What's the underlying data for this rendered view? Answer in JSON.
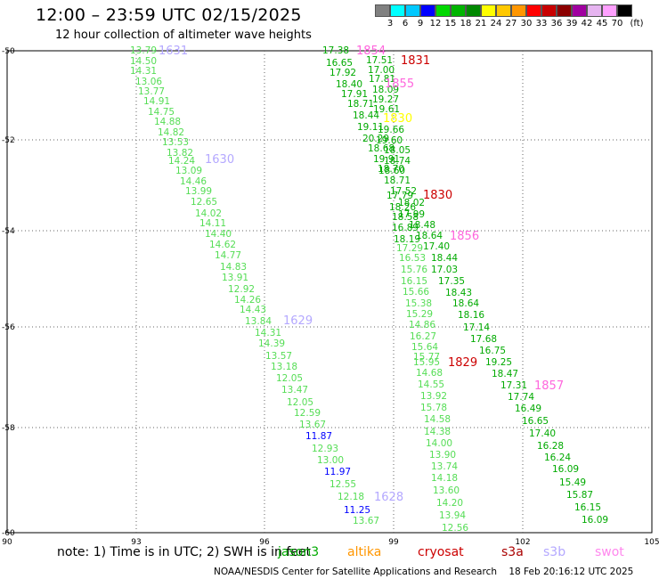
{
  "header": {
    "title": "12:00 – 23:59 UTC 02/15/2025",
    "subtitle": "12 hour collection of altimeter wave heights"
  },
  "color_scale": {
    "unit_label": "(ft)",
    "colors": [
      "#808080",
      "#00ffff",
      "#00c8ff",
      "#0000ff",
      "#00d800",
      "#00b400",
      "#008800",
      "#ffff00",
      "#ffc800",
      "#ff9600",
      "#ff0000",
      "#c80000",
      "#8c0000",
      "#a000a0",
      "#e6b4f0",
      "#ffa0ff",
      "#000000"
    ],
    "boundaries": [
      "3",
      "6",
      "9",
      "12",
      "15",
      "18",
      "21",
      "24",
      "27",
      "30",
      "33",
      "36",
      "39",
      "42",
      "45",
      "70"
    ]
  },
  "axes": {
    "lon_labels": [
      "90",
      "93",
      "96",
      "99",
      "102",
      "105"
    ],
    "lat_labels": [
      "-50",
      "-52",
      "-54",
      "-56",
      "-58",
      "-60"
    ]
  },
  "tracks": [
    {
      "label": "1631",
      "label_color": "#b4a8ff",
      "label_pos": [
        178,
        56
      ],
      "color": "#55dd55",
      "points": [
        [
          "13.79",
          146,
          56
        ],
        [
          "14.50",
          146,
          68
        ],
        [
          "14.31",
          146,
          79
        ],
        [
          "13.06",
          152,
          91
        ],
        [
          "13.77",
          155,
          102
        ],
        [
          "14.91",
          161,
          113
        ],
        [
          "14.75",
          166,
          125
        ],
        [
          "14.88",
          173,
          136
        ],
        [
          "14.82",
          177,
          148
        ],
        [
          "13.53",
          182,
          159
        ],
        [
          "13.82",
          187,
          171
        ],
        [
          "14.24",
          189,
          180
        ],
        [
          "13.09",
          197,
          191
        ],
        [
          "14.46",
          202,
          203
        ],
        [
          "13.99",
          208,
          214
        ],
        [
          "12.65",
          214,
          226
        ],
        [
          "14.02",
          219,
          239
        ],
        [
          "14.11",
          224,
          250
        ],
        [
          "14.40",
          230,
          262
        ],
        [
          "14.62",
          235,
          274
        ],
        [
          "14.77",
          241,
          286
        ],
        [
          "14.83",
          247,
          299
        ],
        [
          "13.91",
          249,
          311
        ],
        [
          "12.92",
          256,
          324
        ],
        [
          "14.26",
          263,
          336
        ],
        [
          "14.43",
          269,
          347
        ],
        [
          "13.84",
          275,
          360
        ]
      ]
    },
    {
      "label": "1630",
      "label_color": "#b4a8ff",
      "label_pos": [
        230,
        178
      ],
      "points": []
    },
    {
      "label": "1629",
      "label_color": "#b4a8ff",
      "label_pos": [
        318,
        359
      ],
      "points": []
    },
    {
      "label": "1629b",
      "label_color": "#55dd55",
      "color": "#55dd55",
      "points": [
        [
          "14.31",
          286,
          373
        ],
        [
          "14.39",
          290,
          385
        ],
        [
          "13.57",
          298,
          399
        ],
        [
          "13.18",
          304,
          411
        ],
        [
          "12.05",
          310,
          424
        ],
        [
          "13.47",
          316,
          437
        ],
        [
          "12.05",
          322,
          451
        ],
        [
          "12.59",
          330,
          463
        ],
        [
          "13.67",
          336,
          476
        ]
      ]
    },
    {
      "label": "1628",
      "label_color": "#b4a8ff",
      "label_pos": [
        420,
        557
      ],
      "color": "#55dd55",
      "points": [
        [
          "11.87",
          343,
          489,
          "#0000ff"
        ],
        [
          "12.93",
          350,
          503
        ],
        [
          "13.00",
          356,
          516
        ],
        [
          "11.97",
          364,
          529,
          "#0000ff"
        ],
        [
          "12.55",
          370,
          543
        ],
        [
          "12.18",
          379,
          557
        ],
        [
          "11.25",
          386,
          572,
          "#0000ff"
        ],
        [
          "13.67",
          396,
          584
        ]
      ]
    },
    {
      "label": "1854",
      "label_color": "#ff66dd",
      "label_pos": [
        400,
        56
      ],
      "color": "#00aa00",
      "points": [
        [
          "17.38",
          362,
          56
        ],
        [
          "16.65",
          366,
          70
        ],
        [
          "17.92",
          370,
          81
        ],
        [
          "18.40",
          377,
          94
        ],
        [
          "17.91",
          383,
          105
        ],
        [
          "18.71",
          390,
          116
        ],
        [
          "18.44",
          396,
          129
        ],
        [
          "19.11",
          401,
          142
        ],
        [
          "20.29",
          407,
          155
        ],
        [
          "18.68",
          413,
          166
        ],
        [
          "19.91",
          419,
          178
        ],
        [
          "18.70",
          424,
          189
        ]
      ]
    },
    {
      "label": "1831",
      "label_color": "#cc0000",
      "label_pos": [
        450,
        67
      ],
      "color": "#00aa00",
      "points": [
        [
          "17.51",
          411,
          67
        ],
        [
          "17.00",
          413,
          78
        ],
        [
          "17.81",
          414,
          88
        ],
        [
          "18.09",
          418,
          100
        ],
        [
          "19.27",
          418,
          111
        ],
        [
          "19.61",
          419,
          122
        ],
        [
          "19.66",
          424,
          145
        ],
        [
          "19.60",
          422,
          157
        ],
        [
          "18.05",
          431,
          168
        ],
        [
          "18.74",
          431,
          180
        ],
        [
          "18.60",
          425,
          191
        ],
        [
          "18.71",
          431,
          202
        ]
      ]
    },
    {
      "label": "1855",
      "label_color": "#ff66dd",
      "label_pos": [
        432,
        93
      ],
      "points": []
    },
    {
      "label": "1830",
      "label_color": "#cc0000",
      "label_pos": [
        475,
        218
      ],
      "color": "#00aa00",
      "points": [
        [
          "17.52",
          438,
          214
        ],
        [
          "17.79",
          434,
          219
        ],
        [
          "18.02",
          447,
          227
        ],
        [
          "18.26",
          437,
          232
        ],
        [
          "17.99",
          447,
          240
        ],
        [
          "18.58",
          440,
          243
        ],
        [
          "18.48",
          459,
          252
        ],
        [
          "16.89",
          440,
          255
        ],
        [
          "18.64",
          467,
          264
        ],
        [
          "18.19",
          442,
          268
        ]
      ]
    },
    {
      "label": "1830y",
      "label_color": "#ffff00",
      "label_pos": [
        430,
        132
      ],
      "points": []
    },
    {
      "label": "1856",
      "label_color": "#ff66dd",
      "label_pos": [
        505,
        264
      ],
      "color": "#00aa00",
      "points": [
        [
          "17.40",
          475,
          276
        ],
        [
          "18.44",
          484,
          289
        ],
        [
          "17.03",
          484,
          302
        ],
        [
          "17.35",
          492,
          315
        ],
        [
          "18.43",
          500,
          328
        ],
        [
          "18.64",
          508,
          340
        ],
        [
          "18.16",
          514,
          353
        ],
        [
          "17.14",
          520,
          367
        ],
        [
          "17.68",
          528,
          380
        ],
        [
          "16.75",
          538,
          393
        ]
      ]
    },
    {
      "label": "1829",
      "label_color": "#cc0000",
      "label_pos": [
        503,
        406
      ],
      "color": "#55dd55",
      "points": [
        [
          "17.29",
          445,
          278
        ],
        [
          "16.53",
          448,
          289
        ],
        [
          "15.76",
          450,
          302
        ],
        [
          "16.15",
          450,
          315
        ],
        [
          "15.66",
          452,
          327
        ],
        [
          "15.38",
          455,
          340
        ],
        [
          "15.29",
          456,
          352
        ],
        [
          "14.86",
          459,
          364
        ],
        [
          "16.27",
          460,
          377
        ],
        [
          "15.64",
          462,
          389
        ],
        [
          "15.77",
          464,
          400
        ],
        [
          "15.95",
          464,
          406
        ],
        [
          "14.68",
          467,
          418
        ],
        [
          "14.55",
          469,
          431
        ],
        [
          "13.92",
          472,
          444
        ],
        [
          "15.78",
          472,
          457
        ],
        [
          "14.58",
          476,
          470
        ],
        [
          "14.38",
          476,
          484
        ],
        [
          "14.00",
          478,
          497
        ],
        [
          "13.90",
          482,
          510
        ],
        [
          "13.74",
          484,
          523
        ],
        [
          "14.18",
          484,
          536
        ],
        [
          "13.60",
          486,
          550
        ],
        [
          "14.20",
          490,
          564
        ],
        [
          "13.94",
          493,
          578
        ],
        [
          "12.56",
          496,
          592
        ]
      ]
    },
    {
      "label": "1857",
      "label_color": "#ff66dd",
      "label_pos": [
        600,
        432
      ],
      "color": "#00aa00",
      "points": [
        [
          "19.25",
          545,
          406
        ],
        [
          "18.47",
          552,
          419
        ],
        [
          "17.31",
          562,
          432
        ],
        [
          "17.74",
          570,
          445
        ],
        [
          "16.49",
          578,
          458
        ],
        [
          "16.65",
          586,
          472
        ],
        [
          "17.40",
          594,
          486
        ],
        [
          "16.28",
          603,
          500
        ],
        [
          "16.24",
          611,
          513
        ],
        [
          "16.09",
          620,
          526
        ],
        [
          "15.49",
          628,
          541
        ],
        [
          "15.87",
          636,
          555
        ],
        [
          "16.15",
          645,
          569
        ],
        [
          "16.09",
          653,
          583
        ]
      ]
    }
  ],
  "notes": {
    "text": "note:  1) Time is in UTC;  2) SWH is in feet",
    "satellites": [
      {
        "name": "jason3",
        "color": "#00aa00"
      },
      {
        "name": "altika",
        "color": "#ff9600"
      },
      {
        "name": "cryosat",
        "color": "#cc0000"
      },
      {
        "name": "s3a",
        "color": "#aa0000"
      },
      {
        "name": "s3b",
        "color": "#b4a8ff"
      },
      {
        "name": "swot",
        "color": "#ff88ee"
      }
    ]
  },
  "footer": {
    "credit": "NOAA/NESDIS Center for Satellite Applications and Research",
    "timestamp": "18 Feb 20:16:12 UTC 2025"
  }
}
